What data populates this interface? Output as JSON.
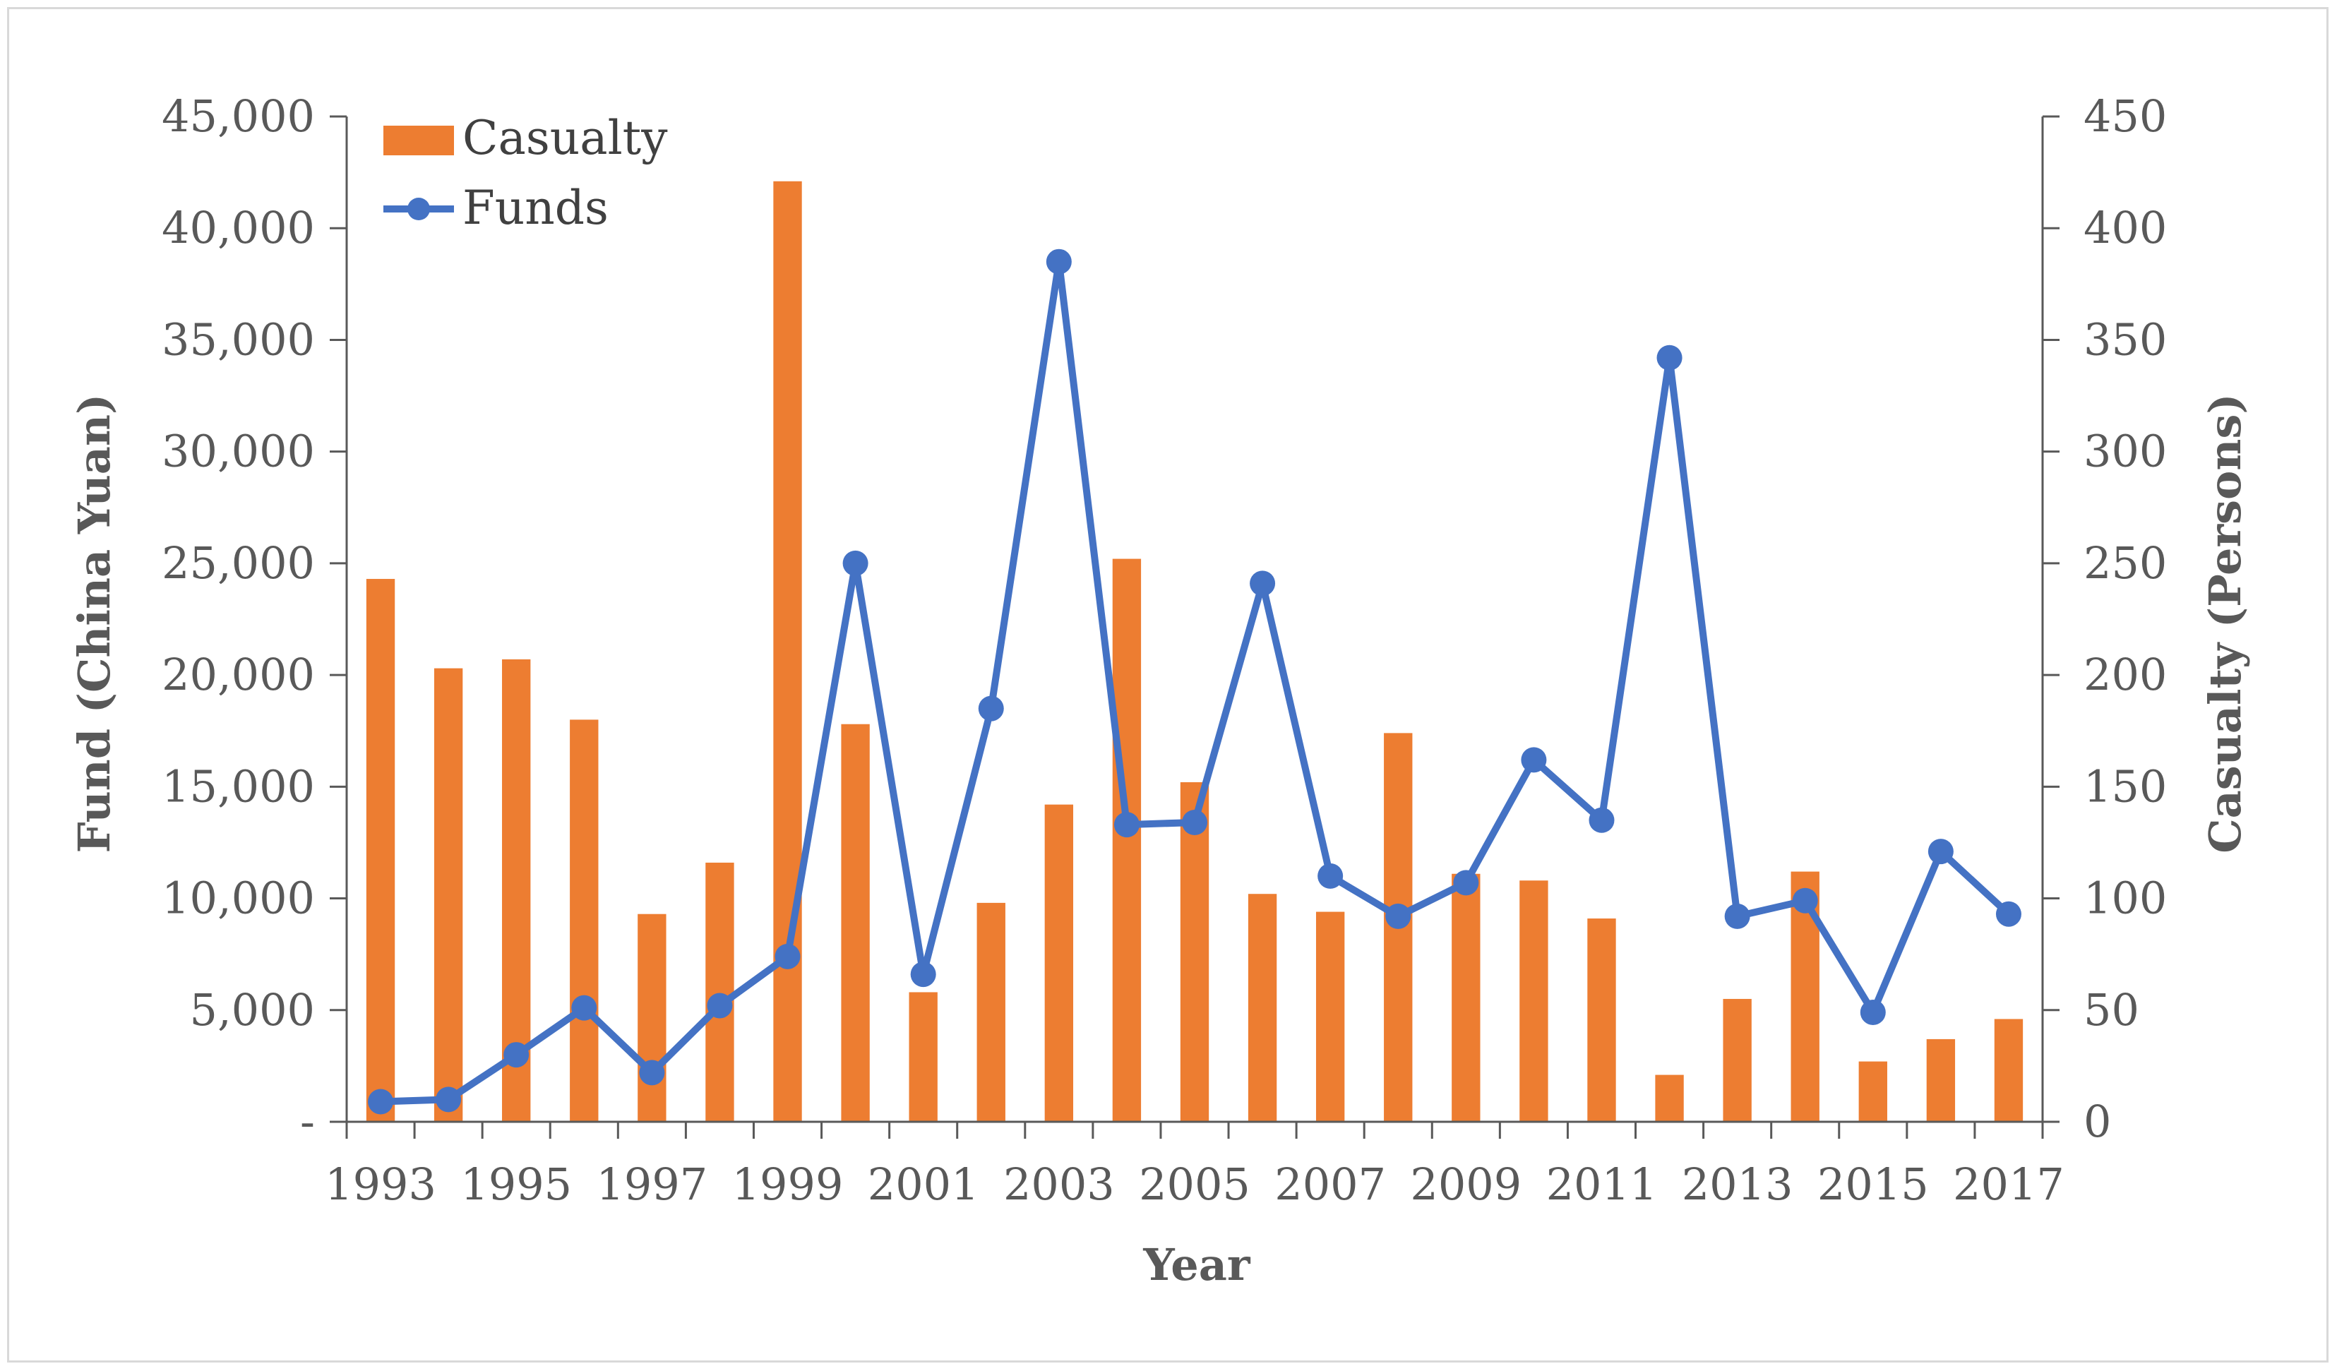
{
  "chart_data": {
    "type": "bar+line",
    "title": "",
    "xlabel": "Year",
    "ylabel_left": "Fund (China Yuan)",
    "ylabel_right": "Casualty (Persons)",
    "categories": [
      1993,
      1994,
      1995,
      1996,
      1997,
      1998,
      1999,
      2000,
      2001,
      2002,
      2003,
      2004,
      2005,
      2006,
      2007,
      2008,
      2009,
      2010,
      2011,
      2012,
      2013,
      2014,
      2015,
      2016,
      2017
    ],
    "x_tick_labels": [
      "1993",
      "1995",
      "1997",
      "1999",
      "2001",
      "2003",
      "2005",
      "2007",
      "2009",
      "2011",
      "2013",
      "2015",
      "2017"
    ],
    "ylim_left": [
      0,
      45000
    ],
    "ylim_right": [
      0,
      450
    ],
    "y_left_tick_labels": [
      "-",
      "5,000",
      "10,000",
      "15,000",
      "20,000",
      "25,000",
      "30,000",
      "35,000",
      "40,000",
      "45,000"
    ],
    "y_right_tick_labels": [
      "0",
      "50",
      "100",
      "150",
      "200",
      "250",
      "300",
      "350",
      "400",
      "450"
    ],
    "series": [
      {
        "name": "Casualty",
        "type": "bar",
        "axis": "right",
        "color": "#ED7D31",
        "values": [
          243,
          203,
          207,
          180,
          93,
          116,
          421,
          178,
          58,
          98,
          142,
          252,
          152,
          102,
          94,
          174,
          111,
          108,
          91,
          21,
          55,
          112,
          27,
          37,
          46
        ]
      },
      {
        "name": "Funds",
        "type": "line",
        "axis": "left",
        "color": "#4472C4",
        "values": [
          900,
          1000,
          3000,
          5100,
          2200,
          5200,
          7400,
          25000,
          6600,
          18500,
          38500,
          13300,
          13400,
          24100,
          11000,
          9200,
          10700,
          16200,
          13500,
          34200,
          9200,
          9900,
          4900,
          12100,
          9300
        ]
      }
    ],
    "legend": [
      "Casualty",
      "Funds"
    ],
    "legend_position": "top-left",
    "grid": false
  }
}
